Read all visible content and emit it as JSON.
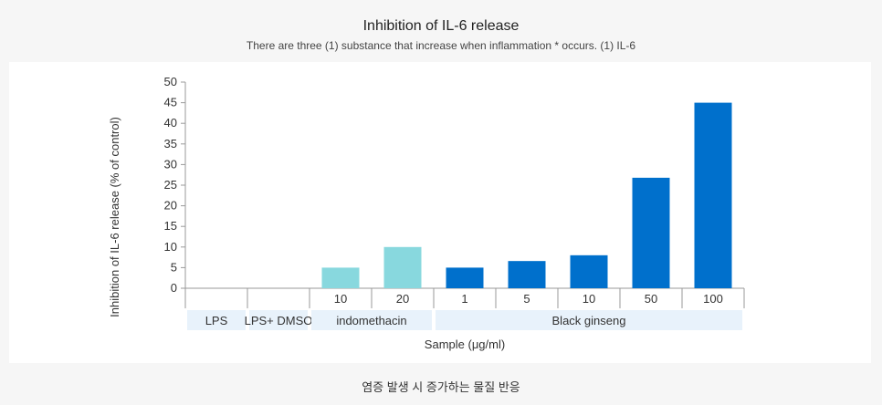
{
  "header": {
    "title": "Inhibition of IL-6 release",
    "subtitle": "There are three (1) substance that increase when inflammation * occurs. (1) IL-6"
  },
  "caption": "염증 발생 시 증가하는 물질 반응",
  "colors": {
    "indomethacin": "#88d8de",
    "ginseng": "#0070cc",
    "group_band": "#e8f2fb",
    "axis": "#999999"
  },
  "chart_data": {
    "type": "bar",
    "title": "Inhibition of IL-6 release",
    "ylabel": "Inhibition of IL-6 release (% of control)",
    "xlabel": "Sample (μg/ml)",
    "ylim": [
      0,
      50
    ],
    "yticks": [
      0,
      5,
      10,
      15,
      20,
      25,
      30,
      35,
      40,
      45,
      50
    ],
    "grid": false,
    "categories": [
      {
        "group": "LPS",
        "dose": "",
        "value": 0
      },
      {
        "group": "LPS+ DMSO",
        "dose": "",
        "value": 0
      },
      {
        "group": "indomethacin",
        "dose": "10",
        "value": 5
      },
      {
        "group": "indomethacin",
        "dose": "20",
        "value": 10
      },
      {
        "group": "Black ginseng",
        "dose": "1",
        "value": 5
      },
      {
        "group": "Black ginseng",
        "dose": "5",
        "value": 6.6
      },
      {
        "group": "Black ginseng",
        "dose": "10",
        "value": 8
      },
      {
        "group": "Black ginseng",
        "dose": "50",
        "value": 26.8
      },
      {
        "group": "Black ginseng",
        "dose": "100",
        "value": 45
      }
    ],
    "groups": [
      {
        "name": "LPS",
        "span": 1
      },
      {
        "name": "LPS+ DMSO",
        "span": 1
      },
      {
        "name": "indomethacin",
        "span": 2
      },
      {
        "name": "Black ginseng",
        "span": 5
      }
    ]
  }
}
